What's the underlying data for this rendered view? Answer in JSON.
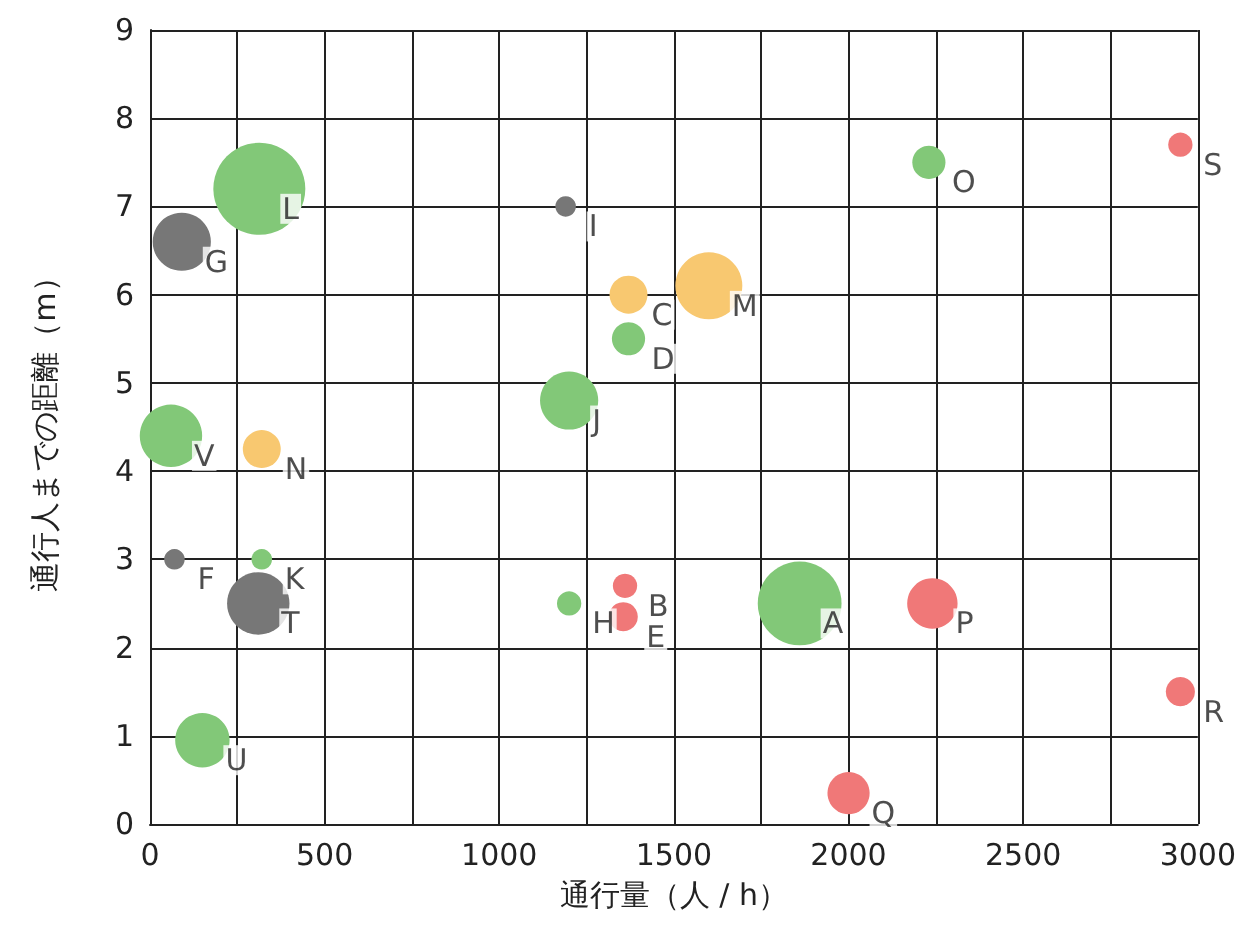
{
  "chart_data": {
    "type": "bubble",
    "xlabel": "通行量（人 / h）",
    "ylabel": "通行人までの距離（m）",
    "x": [
      313,
      91,
      1190,
      1370,
      1600,
      1370,
      1200,
      60,
      320,
      70,
      320,
      310,
      1200,
      1360,
      1355,
      1860,
      2240,
      2230,
      2950,
      2950,
      150,
      2000
    ],
    "values": [
      7.2,
      6.6,
      7.0,
      6.0,
      6.1,
      5.5,
      4.8,
      4.4,
      4.25,
      3.0,
      3.0,
      2.5,
      2.5,
      2.7,
      2.35,
      2.5,
      2.5,
      7.5,
      7.7,
      1.5,
      0.95,
      0.35
    ],
    "sizes": [
      1,
      0.4,
      0.05,
      0.17,
      0.53,
      0.13,
      0.4,
      0.46,
      0.17,
      0.05,
      0.05,
      0.46,
      0.07,
      0.07,
      0.1,
      0.83,
      0.3,
      0.13,
      0.07,
      0.1,
      0.35,
      0.21
    ],
    "colors": [
      "#82c878",
      "#777777",
      "#777777",
      "#f8c870",
      "#f8c870",
      "#82c878",
      "#82c878",
      "#82c878",
      "#f8c870",
      "#777777",
      "#82c878",
      "#777777",
      "#82c878",
      "#f07878",
      "#f07878",
      "#82c878",
      "#f07878",
      "#82c878",
      "#f07878",
      "#f07878",
      "#82c878",
      "#f07878"
    ],
    "annotations": [
      {
        "text": "L",
        "x": 313,
        "y": 7.2
      },
      {
        "text": "G",
        "x": 91,
        "y": 6.6
      },
      {
        "text": "I",
        "x": 1190,
        "y": 7.0
      },
      {
        "text": "C",
        "x": 1370,
        "y": 6.0
      },
      {
        "text": "M",
        "x": 1600,
        "y": 6.1
      },
      {
        "text": "D",
        "x": 1370,
        "y": 5.5
      },
      {
        "text": "J",
        "x": 1200,
        "y": 4.8
      },
      {
        "text": "V",
        "x": 60,
        "y": 4.4
      },
      {
        "text": "N",
        "x": 320,
        "y": 4.25
      },
      {
        "text": "F",
        "x": 70,
        "y": 3.0
      },
      {
        "text": "K",
        "x": 320,
        "y": 3.0
      },
      {
        "text": "T",
        "x": 310,
        "y": 2.5
      },
      {
        "text": "H",
        "x": 1200,
        "y": 2.5
      },
      {
        "text": "B",
        "x": 1360,
        "y": 2.7
      },
      {
        "text": "E",
        "x": 1355,
        "y": 2.35
      },
      {
        "text": "A",
        "x": 1860,
        "y": 2.5
      },
      {
        "text": "P",
        "x": 2240,
        "y": 2.5
      },
      {
        "text": "O",
        "x": 2230,
        "y": 7.5
      },
      {
        "text": "S",
        "x": 2950,
        "y": 7.7
      },
      {
        "text": "R",
        "x": 2950,
        "y": 1.5
      },
      {
        "text": "U",
        "x": 150,
        "y": 0.95
      },
      {
        "text": "Q",
        "x": 2000,
        "y": 0.35
      }
    ],
    "xlim": [
      0,
      3000
    ],
    "xticks": [
      0,
      {
        "value": 250,
        "label": null
      },
      500,
      {
        "value": 750,
        "label": null
      },
      1000,
      {
        "value": 1250,
        "label": null
      },
      1500,
      {
        "value": 1750,
        "label": null
      },
      2000,
      {
        "value": 2250,
        "label": null
      },
      2500,
      {
        "value": 2750,
        "label": null
      },
      3000
    ],
    "ylim": [
      0,
      9
    ],
    "yticks": [
      0,
      1,
      2,
      3,
      4,
      5,
      6,
      7,
      8,
      9
    ],
    "grid": true
  }
}
